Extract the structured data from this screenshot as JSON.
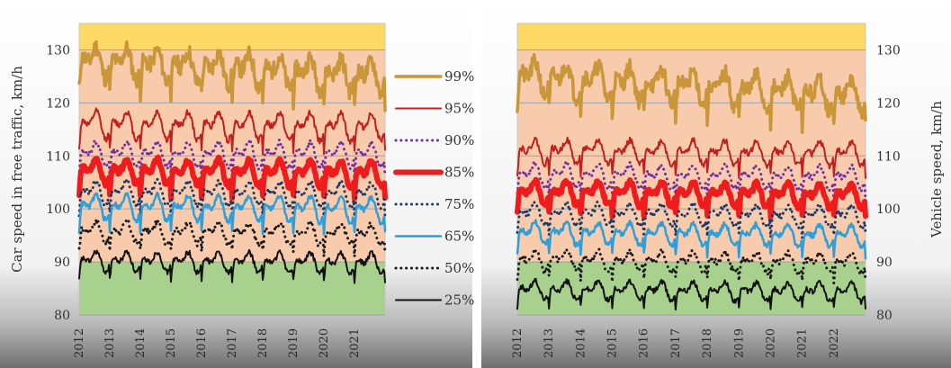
{
  "chart_data": [
    {
      "type": "line",
      "ylabel": "Car speed in free traffic, km/h",
      "xlabel": "",
      "ylim": [
        80,
        135
      ],
      "yticks": [
        80,
        90,
        100,
        110,
        120,
        130
      ],
      "xticks": [
        "2012",
        "2013",
        "2014",
        "2015",
        "2016",
        "2017",
        "2018",
        "2019",
        "2020",
        "2021"
      ],
      "xrange": [
        2012.0,
        2022.0
      ],
      "grid": "horizontal",
      "legend": "right",
      "bands": [
        {
          "from": 80,
          "to": 90,
          "color": "#a9d18e"
        },
        {
          "from": 90,
          "to": 130,
          "color": "#f8cbad"
        },
        {
          "from": 130,
          "to": 135,
          "color": "#ffd966"
        }
      ],
      "series": [
        {
          "name": "99%",
          "color": "#c9973a",
          "width": 3.5,
          "dash": "solid",
          "base": 128,
          "amp": 3.4,
          "trend": -0.3,
          "noise": 1.6,
          "seed": 11
        },
        {
          "name": "95%",
          "color": "#c0201e",
          "width": 2,
          "dash": "solid",
          "base": 116,
          "amp": 3.0,
          "trend": -0.05,
          "noise": 0.6,
          "seed": 12
        },
        {
          "name": "90%",
          "color": "#7030a0",
          "width": 3,
          "dash": "dot",
          "base": 110.5,
          "amp": 2.7,
          "trend": -0.02,
          "noise": 0.5,
          "seed": 13
        },
        {
          "name": "85%",
          "color": "#ee1c1c",
          "width": 6,
          "dash": "solid",
          "base": 107.2,
          "amp": 2.8,
          "trend": -0.05,
          "noise": 0.5,
          "seed": 14
        },
        {
          "name": "75%",
          "color": "#1f3864",
          "width": 3,
          "dash": "dot",
          "base": 103.2,
          "amp": 2.6,
          "trend": -0.04,
          "noise": 0.5,
          "seed": 15
        },
        {
          "name": "65%",
          "color": "#2e9fd8",
          "width": 2.5,
          "dash": "solid",
          "base": 100.5,
          "amp": 2.8,
          "trend": -0.06,
          "noise": 0.5,
          "seed": 16
        },
        {
          "name": "50%",
          "color": "#1a1a1a",
          "width": 3,
          "dash": "dot",
          "base": 95.8,
          "amp": 2.3,
          "trend": -0.05,
          "noise": 0.6,
          "seed": 17
        },
        {
          "name": "25%",
          "color": "#111111",
          "width": 2,
          "dash": "solid",
          "base": 90.2,
          "amp": 2.2,
          "trend": -0.04,
          "noise": 0.5,
          "seed": 18
        }
      ]
    },
    {
      "type": "line",
      "ylabel": "Vehicle speed, km/h",
      "xlabel": "",
      "ylim": [
        80,
        135
      ],
      "yticks": [
        80,
        90,
        100,
        110,
        120,
        130
      ],
      "xticks": [
        "2012",
        "2013",
        "2014",
        "2015",
        "2016",
        "2017",
        "2018",
        "2019",
        "2020",
        "2021",
        "2022"
      ],
      "xrange": [
        2012.0,
        2023.0
      ],
      "grid": "horizontal",
      "legend": "shared (left panel)",
      "bands": [
        {
          "from": 80,
          "to": 90,
          "color": "#a9d18e"
        },
        {
          "from": 90,
          "to": 130,
          "color": "#f8cbad"
        },
        {
          "from": 130,
          "to": 135,
          "color": "#ffd966"
        }
      ],
      "series": [
        {
          "name": "99%",
          "color": "#c9973a",
          "width": 3.5,
          "dash": "solid",
          "base": 125,
          "amp": 3.6,
          "trend": -0.35,
          "noise": 1.6,
          "seed": 21
        },
        {
          "name": "95%",
          "color": "#c0201e",
          "width": 2,
          "dash": "solid",
          "base": 111,
          "amp": 2.6,
          "trend": -0.05,
          "noise": 0.6,
          "seed": 22
        },
        {
          "name": "90%",
          "color": "#7030a0",
          "width": 3,
          "dash": "dot",
          "base": 106.5,
          "amp": 2.5,
          "trend": -0.05,
          "noise": 0.5,
          "seed": 23
        },
        {
          "name": "85%",
          "color": "#ee1c1c",
          "width": 6,
          "dash": "solid",
          "base": 103.2,
          "amp": 2.5,
          "trend": -0.06,
          "noise": 0.5,
          "seed": 24
        },
        {
          "name": "75%",
          "color": "#1f3864",
          "width": 3,
          "dash": "dot",
          "base": 99.2,
          "amp": 2.3,
          "trend": -0.05,
          "noise": 0.5,
          "seed": 25
        },
        {
          "name": "65%",
          "color": "#2e9fd8",
          "width": 2.5,
          "dash": "solid",
          "base": 95.6,
          "amp": 2.4,
          "trend": -0.06,
          "noise": 0.5,
          "seed": 26
        },
        {
          "name": "50%",
          "color": "#1a1a1a",
          "width": 3,
          "dash": "dot",
          "base": 90.4,
          "amp": 2.1,
          "trend": -0.05,
          "noise": 0.6,
          "seed": 27
        },
        {
          "name": "25%",
          "color": "#111111",
          "width": 2,
          "dash": "solid",
          "base": 84.8,
          "amp": 2.0,
          "trend": -0.04,
          "noise": 0.5,
          "seed": 28
        }
      ]
    }
  ]
}
